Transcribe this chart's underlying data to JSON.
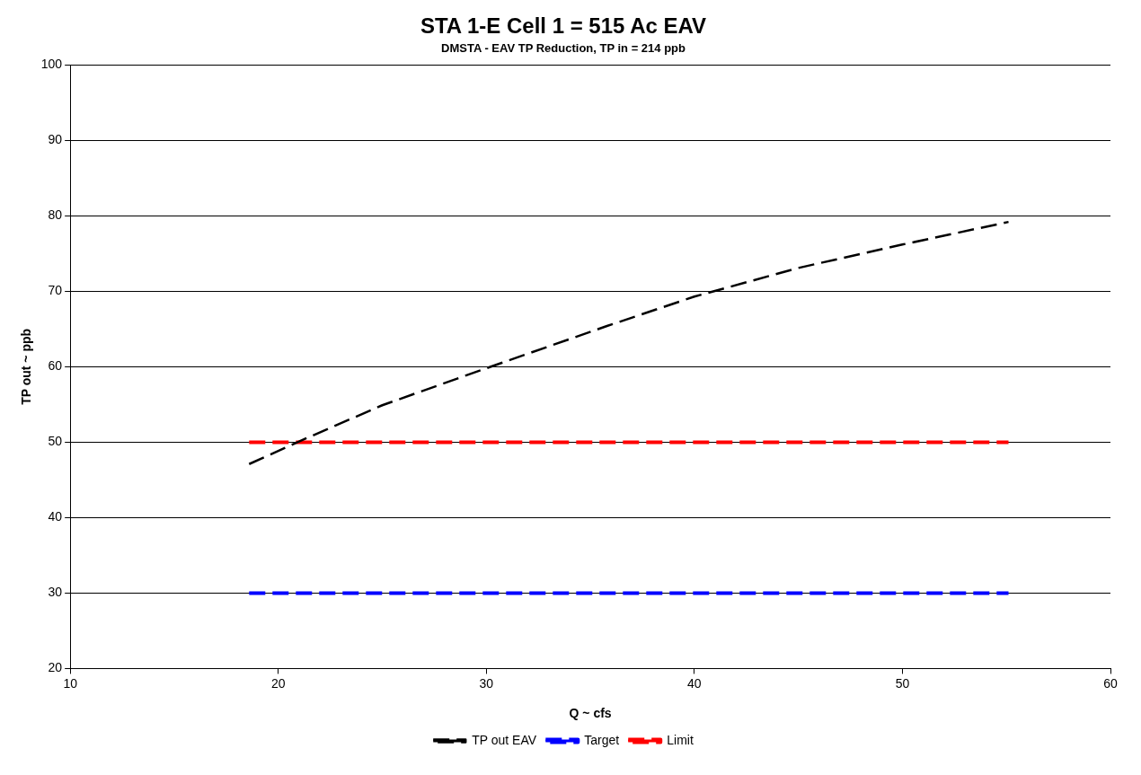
{
  "chart_data": {
    "type": "line",
    "title": "STA 1-E Cell 1 = 515 Ac EAV",
    "subtitle": "DMSTA - EAV TP Reduction, TP in = 214 ppb",
    "xlabel": "Q ~ cfs",
    "ylabel": "TP out ~ ppb",
    "xlim": [
      10,
      60
    ],
    "xticks": [
      10,
      20,
      30,
      40,
      50,
      60
    ],
    "ylim": [
      20,
      100
    ],
    "yticks": [
      20,
      30,
      40,
      50,
      60,
      70,
      80,
      90,
      100
    ],
    "grid": "y",
    "legend": "bottom",
    "marker": "none",
    "line_style": "dashed",
    "series": [
      {
        "name": "TP out EAV",
        "color": "#000000",
        "x": [
          18.6,
          21,
          25,
          30,
          35.8,
          40,
          45,
          50,
          55.1
        ],
        "values": [
          47.1,
          50.1,
          54.9,
          59.8,
          65.4,
          69.3,
          73.1,
          76.2,
          79.2
        ]
      },
      {
        "name": "Target",
        "color": "#0000ff",
        "x": [
          18.6,
          55.1
        ],
        "values": [
          30,
          30
        ]
      },
      {
        "name": "Limit",
        "color": "#ff0000",
        "x": [
          18.6,
          55.1
        ],
        "values": [
          50,
          50
        ]
      }
    ]
  }
}
